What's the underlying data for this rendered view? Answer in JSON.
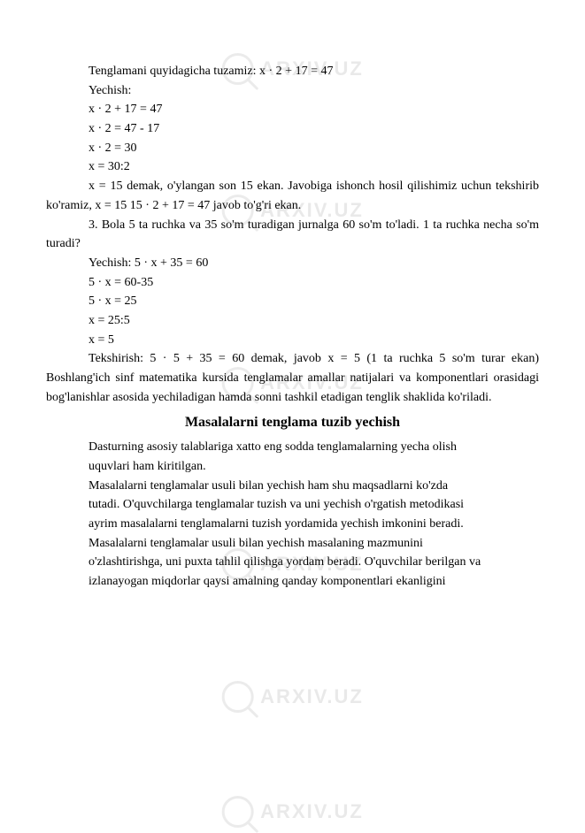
{
  "watermark": "ARXIV.UZ",
  "lines": {
    "l1": "Tenglamani quyidagicha tuzamiz: x · 2 + 17 = 47",
    "l2": "Yechish:",
    "l3": "x · 2 + 17 = 47",
    "l4": "x · 2 = 47 - 17",
    "l5": "x · 2 = 30",
    "l6": "x = 30:2"
  },
  "p1": "x = 15 demak, o'ylangan son 15 ekan. Javobiga ishonch hosil qilishimiz uchun tekshirib ko'ramiz, x = 15 15 · 2 + 17 = 47 javob to'g'ri ekan.",
  "p2": "3. Bola 5 ta ruchka va 35 so'm turadigan jurnalga 60 so'm to'ladi. 1 ta ruchka necha so'm turadi?",
  "lines2": {
    "l7": "Yechish: 5 · x + 35 = 60",
    "l8": "5 · x = 60-35",
    "l9": "5 · x = 25",
    "l10": "x = 25:5",
    "l11": "x = 5"
  },
  "p3": "Tekshirish: 5 · 5 + 35 = 60 demak, javob x = 5 (1 ta ruchka 5 so'm turar ekan) Boshlang'ich sinf matematika kursida tenglamalar amallar natijalari va komponentlari orasidagi bog'lanishlar asosida yechiladigan hamda sonni tashkil etadigan tenglik shaklida ko'riladi.",
  "heading": "Masalalarni tenglama tuzib yechish",
  "p4": "Dasturning asosiy talablariga xatto eng sodda tenglamalarning yecha olish",
  "p5": "uquvlari ham kiritilgan.",
  "p6": "Masalalarni tenglamalar usuli bilan yechish ham shu maqsadlarni ko'zda",
  "p7": "tutadi. O'quvchilarga tenglamalar tuzish va uni yechish o'rgatish metodikasi",
  "p8": "ayrim masalalarni tenglamalarni tuzish yordamida yechish imkonini beradi.",
  "p9": "Masalalarni tenglamalar usuli bilan yechish masalaning mazmunini",
  "p10": "o'zlashtirishga, uni puxta tahlil qilishga yordam beradi. O'quvchilar berilgan va",
  "p11": "izlanayogan miqdorlar qaysi amalning qanday komponentlari ekanligini"
}
